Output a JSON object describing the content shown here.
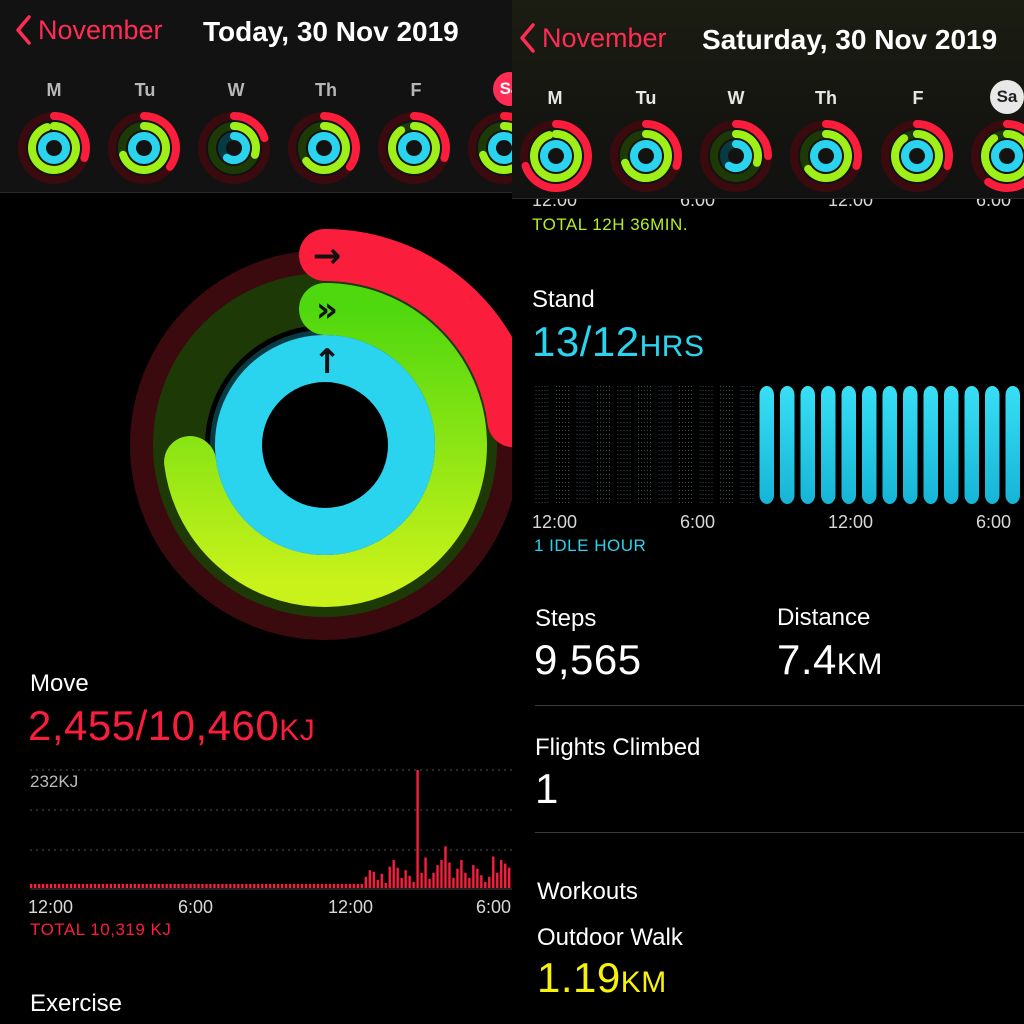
{
  "left": {
    "header": {
      "back_label": "November",
      "date_title": "Today, 30 Nov 2019",
      "weekdays": [
        "M",
        "Tu",
        "W",
        "Th",
        "F",
        "Sa"
      ]
    },
    "move": {
      "label": "Move",
      "value": "2,455/10,460",
      "unit": "KJ",
      "chart_max_label": "232KJ",
      "x_ticks": [
        "12:00",
        "6:00",
        "12:00",
        "6:00"
      ],
      "total": "TOTAL 10,319 KJ"
    },
    "exercise": {
      "label": "Exercise"
    },
    "rings": {
      "move_fraction": 0.23,
      "exercise_fraction": 0.73,
      "stand_fraction": 1.08
    },
    "colors": {
      "move": "#fa1e3c",
      "exercise": "#9ef018",
      "stand": "#2ad4ee"
    }
  },
  "right": {
    "header": {
      "back_label": "November",
      "date_title": "Saturday, 30 Nov 2019",
      "weekdays": [
        "M",
        "Tu",
        "W",
        "Th",
        "F",
        "Sa"
      ]
    },
    "exercise_axis_top": [
      "12:00",
      "6:00",
      "12:00",
      "6:00"
    ],
    "exercise_total": "TOTAL 12H 36MIN.",
    "stand": {
      "label": "Stand",
      "value": "13/12",
      "unit": "HRS",
      "x_ticks": [
        "12:00",
        "6:00",
        "12:00",
        "6:00"
      ],
      "idle": "1 IDLE HOUR"
    },
    "steps": {
      "label": "Steps",
      "value": "9,565"
    },
    "distance": {
      "label": "Distance",
      "value": "7.4",
      "unit": "KM"
    },
    "flights": {
      "label": "Flights Climbed",
      "value": "1"
    },
    "workouts": {
      "label": "Workouts",
      "name": "Outdoor Walk",
      "value": "1.19",
      "unit": "KM"
    }
  },
  "chart_data": [
    {
      "type": "bar",
      "title": "Move",
      "ylabel": "",
      "xlabel": "",
      "x_ticks": [
        "12:00",
        "6:00",
        "12:00",
        "6:00"
      ],
      "ylim": [
        0,
        232
      ],
      "values": [
        8,
        8,
        8,
        8,
        8,
        8,
        8,
        8,
        8,
        8,
        8,
        8,
        8,
        8,
        8,
        8,
        8,
        8,
        8,
        8,
        8,
        8,
        8,
        8,
        8,
        8,
        8,
        8,
        8,
        8,
        8,
        8,
        8,
        8,
        8,
        8,
        8,
        8,
        8,
        8,
        8,
        8,
        8,
        8,
        8,
        8,
        8,
        8,
        8,
        8,
        8,
        8,
        8,
        8,
        8,
        8,
        8,
        8,
        8,
        8,
        8,
        8,
        8,
        8,
        8,
        8,
        8,
        8,
        8,
        8,
        8,
        8,
        8,
        8,
        8,
        8,
        8,
        8,
        8,
        8,
        8,
        8,
        8,
        8,
        22,
        35,
        32,
        16,
        28,
        10,
        42,
        55,
        40,
        20,
        35,
        24,
        12,
        232,
        30,
        60,
        18,
        30,
        45,
        55,
        82,
        50,
        20,
        38,
        55,
        30,
        20,
        45,
        38,
        25,
        12,
        22,
        62,
        30,
        55,
        48,
        40
      ]
    },
    {
      "type": "bar",
      "title": "Stand",
      "x_ticks": [
        "12:00",
        "6:00",
        "12:00",
        "6:00"
      ],
      "values": [
        0,
        0,
        0,
        0,
        0,
        0,
        0,
        0,
        0,
        0,
        0,
        1,
        1,
        1,
        1,
        1,
        1,
        1,
        1,
        1,
        1,
        1,
        1,
        1
      ],
      "ylim": [
        0,
        1
      ]
    }
  ]
}
